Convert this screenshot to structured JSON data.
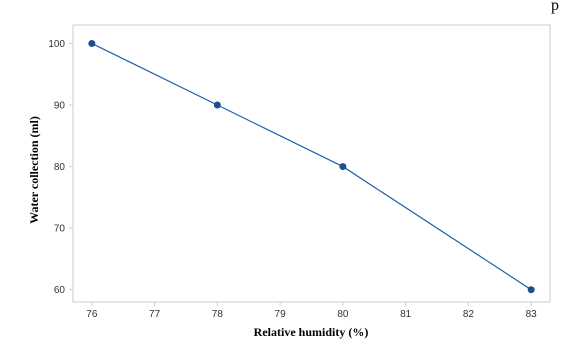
{
  "chart_data": {
    "type": "line",
    "title": "",
    "title_fragment": "p",
    "xlabel": "Relative humidity (%)",
    "ylabel": "Water collection (ml)",
    "x": [
      76,
      78,
      80,
      83
    ],
    "series": [
      {
        "values": [
          100,
          90,
          80,
          60
        ]
      }
    ],
    "xlim": [
      75.7,
      83.3
    ],
    "ylim": [
      58,
      103
    ],
    "xticks": [
      76,
      77,
      78,
      79,
      80,
      81,
      82,
      83
    ],
    "yticks": [
      60,
      70,
      80,
      90,
      100
    ],
    "grid": false,
    "legend": "none",
    "colors": {
      "line": "#1f5fa8",
      "marker": "#1f4e8c",
      "frame": "#cccccc",
      "axis_text": "#333333"
    }
  }
}
